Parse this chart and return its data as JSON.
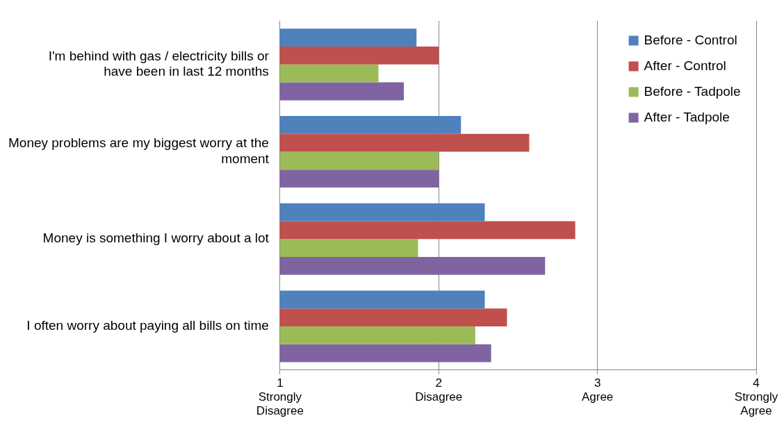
{
  "chart_data": {
    "type": "bar",
    "orientation": "horizontal",
    "categories": [
      "I'm behind with gas / electricity bills or have been in last 12 months",
      "Money problems are my biggest worry at the moment",
      "Money is something I worry about a lot",
      "I often worry about paying all bills on time"
    ],
    "series": [
      {
        "name": "Before - Control",
        "color": "#4f81bd",
        "values": [
          1.86,
          2.14,
          2.29,
          2.29
        ]
      },
      {
        "name": "After - Control",
        "color": "#c0504d",
        "values": [
          2.0,
          2.57,
          2.86,
          2.43
        ]
      },
      {
        "name": "Before - Tadpole",
        "color": "#9bbb59",
        "values": [
          1.62,
          2.0,
          1.87,
          2.23
        ]
      },
      {
        "name": "After - Tadpole",
        "color": "#8064a2",
        "values": [
          1.78,
          2.0,
          2.67,
          2.33
        ]
      }
    ],
    "xlim": [
      1,
      4
    ],
    "xticks": [
      {
        "value": 1,
        "label": "1\nStrongly\nDisagree"
      },
      {
        "value": 2,
        "label": "2\nDisagree"
      },
      {
        "value": 3,
        "label": "3\nAgree"
      },
      {
        "value": 4,
        "label": "4\nStrongly\nAgree"
      }
    ],
    "grid": "x",
    "legend": "top right"
  }
}
